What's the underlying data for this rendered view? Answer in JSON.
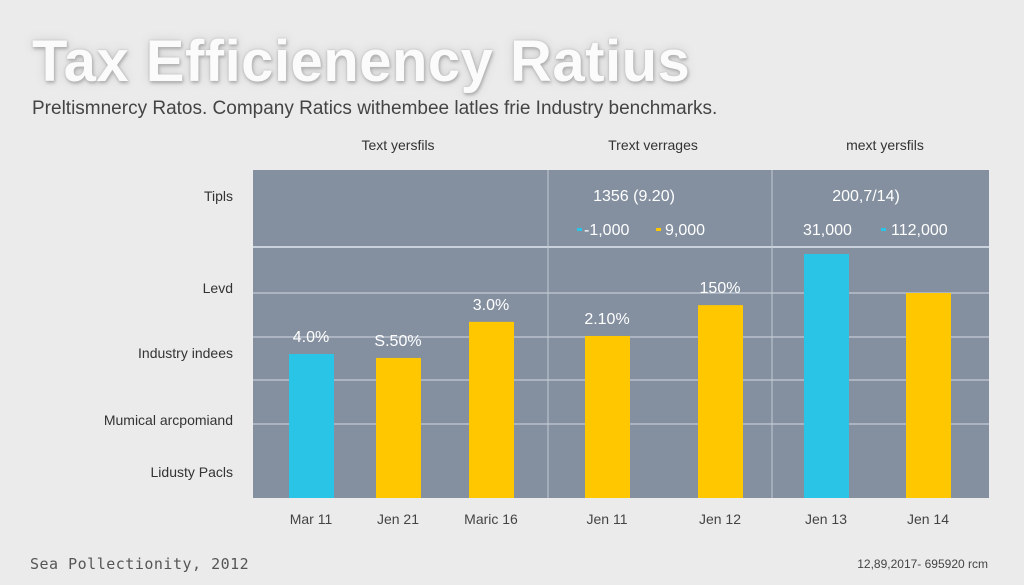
{
  "chart_data": {
    "type": "bar",
    "title": "Tax Efficienency Ratius",
    "subtitle": "Preltismnercy Ratos. Company Ratics withembee latles frie Industry benchmarks.",
    "column_headers": [
      "Text yersfils",
      "Trext verrages",
      "mext yersfils"
    ],
    "header_values": [
      {
        "main": "1356 (9.20)",
        "legend": [
          {
            "label": "-1,000",
            "color": "#29c4e6"
          },
          {
            "label": "9,000",
            "color": "#ffc700"
          }
        ]
      },
      {
        "main": "200,7/14)",
        "legend": [
          {
            "label": "31,000",
            "color": null
          },
          {
            "label": "112,000",
            "color": "#29c4e6"
          }
        ]
      }
    ],
    "y_tick_labels": [
      "Tipls",
      "Levd",
      "Industry indees",
      "Mumical arcpomiand",
      "Lidusty Pacls"
    ],
    "categories": [
      "Mar 11",
      "Jen 21",
      "Maric 16",
      "Jen 11",
      "Jen 12",
      "Jen 13",
      "Jen 14"
    ],
    "values": [
      43.9,
      42.7,
      53.7,
      49.4,
      58.8,
      74.4,
      62.5
    ],
    "bar_colors": [
      "#29c4e6",
      "#ffc700",
      "#ffc700",
      "#ffc700",
      "#ffc700",
      "#29c4e6",
      "#ffc700"
    ],
    "data_labels": [
      "4.0%",
      "S.50%",
      "3.0%",
      "2.10%",
      "150%",
      "",
      ""
    ],
    "ylim": [
      0,
      100
    ],
    "grid": true,
    "xlabel": "",
    "ylabel": "",
    "colors": {
      "background": "#ebebeb",
      "plot": "#8490a0",
      "cyan": "#29c4e6",
      "yellow": "#ffc700"
    }
  },
  "footer": {
    "left": "Sea Pollectionity, 2012",
    "right": "12,89,2017- 695920 rcm"
  }
}
